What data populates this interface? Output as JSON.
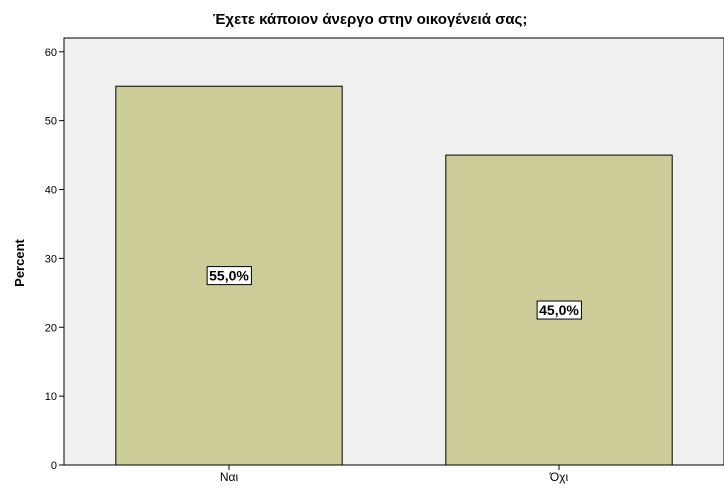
{
  "chart_data": {
    "type": "bar",
    "title": "Έχετε κάποιον άνεργο στην οικογένειά σας;",
    "xlabel": "",
    "ylabel": "Percent",
    "categories": [
      "Ναι",
      "Όχι"
    ],
    "values": [
      55.0,
      45.0
    ],
    "data_labels": [
      "55,0%",
      "45,0%"
    ],
    "ylim": [
      0,
      62
    ],
    "yticks": [
      0,
      10,
      20,
      30,
      40,
      50,
      60
    ],
    "grid": false,
    "legend": "none",
    "colors": {
      "bar_fill": "#cccc99",
      "bar_stroke": "#000000",
      "plot_background": "#f0f0f0",
      "label_box_fill": "#ffffff"
    }
  }
}
